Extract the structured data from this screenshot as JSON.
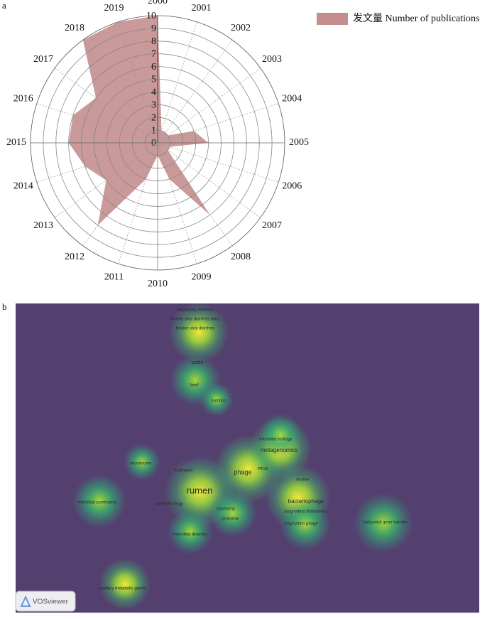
{
  "chart_data": {
    "type": "polar",
    "categories": [
      "2000",
      "2001",
      "2002",
      "2003",
      "2004",
      "2005",
      "2006",
      "2007",
      "2008",
      "2009",
      "2010",
      "2011",
      "2012",
      "2013",
      "2014",
      "2015",
      "2016",
      "2017",
      "2018",
      "2019"
    ],
    "series": [
      {
        "name": "发文量  Number of publications",
        "color": "#c48e8e",
        "values": [
          10,
          1,
          1,
          1,
          3,
          4,
          1,
          1,
          7,
          3,
          1,
          3,
          8,
          5,
          6,
          7,
          7,
          6,
          10,
          10
        ]
      }
    ],
    "ylim": [
      0,
      10
    ],
    "yticks": [
      0,
      1,
      2,
      3,
      4,
      5,
      6,
      7,
      8,
      9,
      10
    ],
    "grid": true,
    "legend": "top-right"
  },
  "panel_labels": [
    "a",
    "b"
  ],
  "density_map": {
    "terms": [
      "respiratory infection",
      "bovine viral diarrhea virus",
      "bovine viral diarrhea",
      "cattle",
      "beef",
      "nutrition",
      "microbial ecology",
      "metagenomics",
      "phage",
      "virus",
      "virome",
      "microbiome",
      "ruminants",
      "rumen",
      "bacteriophage",
      "microbial community",
      "rumen ecology",
      "taxonomy",
      "protozoa",
      "butyrivibrio fibrisolvens",
      "butyrivibrio phage",
      "horizontal gene transfer",
      "microbial diversity",
      "auxiliary metabolic genes"
    ],
    "logo": "VOSviewer"
  }
}
